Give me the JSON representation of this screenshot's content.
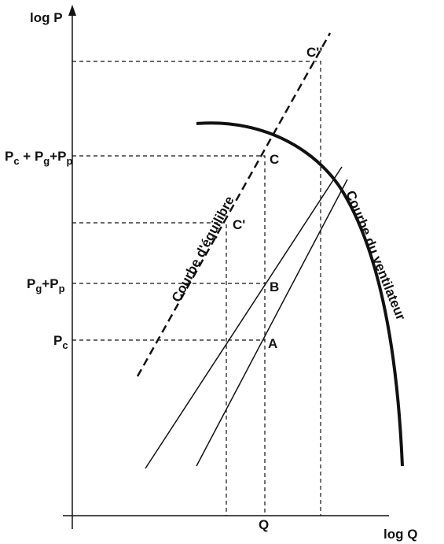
{
  "axes": {
    "y_label": "log P",
    "x_label": "log Q",
    "x_tick": "Q"
  },
  "levels": [
    {
      "parts": [
        "P",
        "c",
        " + P",
        "g",
        "+P",
        "p"
      ]
    },
    {
      "parts": [
        "P",
        "g",
        "+P",
        "p"
      ]
    },
    {
      "parts": [
        "P",
        "c"
      ]
    }
  ],
  "points": [
    "C''",
    "C",
    "C'",
    "B",
    "A"
  ],
  "curves": {
    "equilibrium": "Courbe d'équilibre",
    "fan": "Courbe du ventilateur"
  }
}
